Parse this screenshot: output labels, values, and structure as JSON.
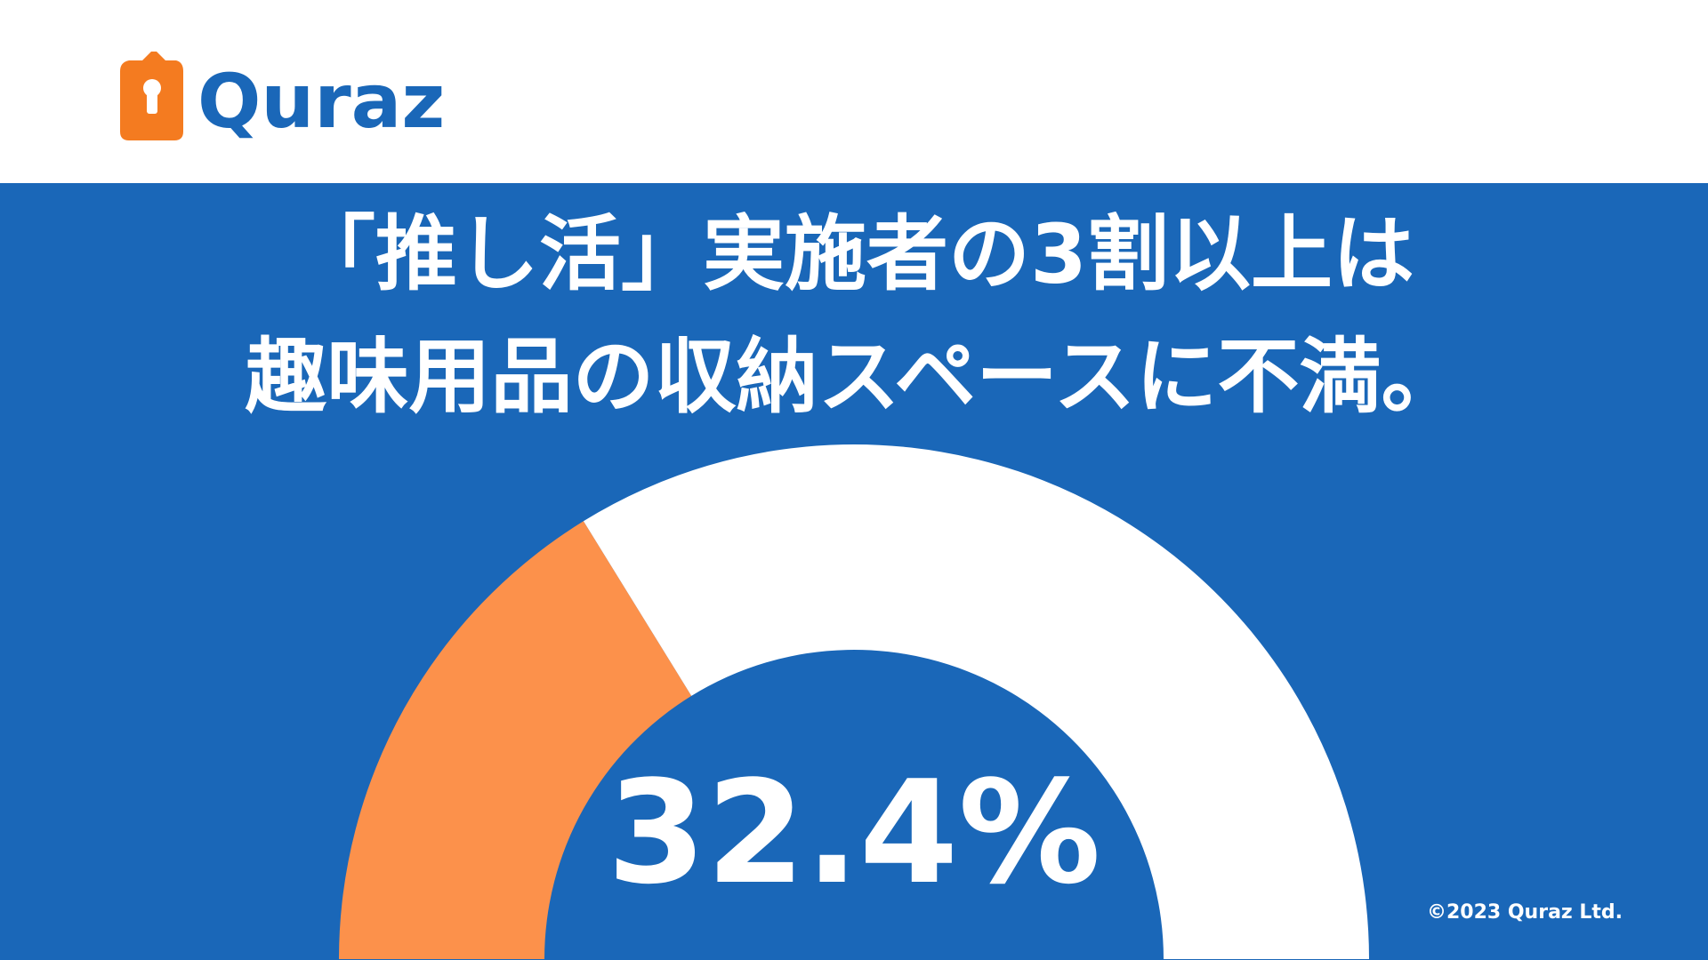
{
  "header": {
    "logo": "Quraz"
  },
  "chart_data": {
    "type": "half-donut",
    "title": [
      "「推し活」実施者の3割以上は",
      "趣味用品の収納スペースに不満。"
    ],
    "values": [
      32.4,
      67.6
    ],
    "value_labels": [
      "32.4%",
      null
    ],
    "colors": [
      "#fc914b",
      "#ffffff"
    ]
  },
  "footer": {
    "copyright": "©2023 Quraz Ltd."
  }
}
